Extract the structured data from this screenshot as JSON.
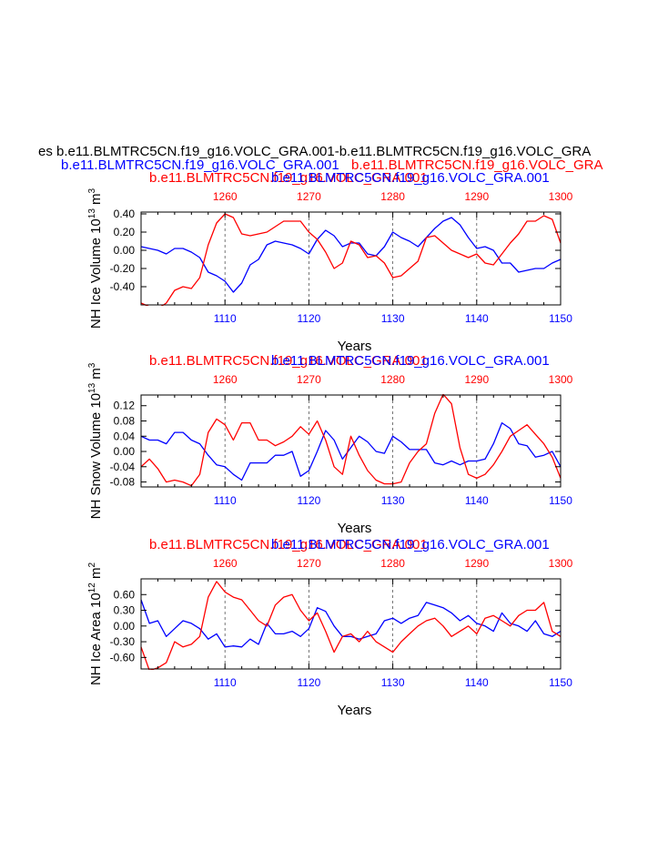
{
  "main_title": "es b.e11.BLMTRC5CN.f19_g16.VOLC_GRA.001-b.e11.BLMTRC5CN.f19_g16.VOLC_GRA",
  "subtitle_blue": "b.e11.BLMTRC5CN.f19_g16.VOLC_GRA.001",
  "subtitle_red": "b.e11.BLMTRC5CN.f19_g16.VOLC_GRA",
  "colors": {
    "blue": "#0000ff",
    "red": "#ff0000",
    "black": "#000000",
    "grid": "#555555"
  },
  "chart_data": [
    {
      "type": "line",
      "name": "ice-volume",
      "ylabel_main": "NH Ice Volume 10",
      "ylabel_exp": "13",
      "ylabel_unit": " m",
      "ylabel_unit_exp": "3",
      "xlabel": "Years",
      "title_red": "b.e11.BLMTRC5CN.f19_g16.VOLC_GRA.001",
      "title_blue": "b.e11.BLMTRC5CN.f19_g16.VOLC_GRA.001",
      "xlim_bottom": [
        1100,
        1150
      ],
      "xlim_top": [
        1250,
        1300
      ],
      "ylim": [
        -0.6,
        0.42
      ],
      "yticks": [
        -0.4,
        -0.2,
        0.0,
        0.2,
        0.4
      ],
      "ytick_labels": [
        "-0.40",
        "-0.20",
        "0.00",
        "0.20",
        "0.40"
      ],
      "xticks_bottom": [
        "1110",
        "1120",
        "1130",
        "1140",
        "1150"
      ],
      "xticks_top": [
        "1260",
        "1270",
        "1280",
        "1290",
        "1300"
      ],
      "series": [
        {
          "name": "blue",
          "color": "#0000ff",
          "values": [
            0.04,
            0.02,
            0.0,
            -0.04,
            0.02,
            0.02,
            -0.02,
            -0.08,
            -0.24,
            -0.28,
            -0.34,
            -0.46,
            -0.36,
            -0.16,
            -0.1,
            0.06,
            0.1,
            0.08,
            0.06,
            0.02,
            -0.04,
            0.12,
            0.22,
            0.16,
            0.04,
            0.08,
            0.08,
            -0.04,
            -0.06,
            0.04,
            0.2,
            0.14,
            0.1,
            0.04,
            0.14,
            0.24,
            0.32,
            0.36,
            0.28,
            0.14,
            0.02,
            0.04,
            0.0,
            -0.14,
            -0.14,
            -0.24,
            -0.22,
            -0.2,
            -0.2,
            -0.14,
            -0.1
          ]
        },
        {
          "name": "red",
          "color": "#ff0000",
          "values": [
            -0.58,
            -0.62,
            -0.64,
            -0.58,
            -0.44,
            -0.4,
            -0.42,
            -0.3,
            0.06,
            0.3,
            0.4,
            0.36,
            0.18,
            0.16,
            0.18,
            0.2,
            0.26,
            0.32,
            0.32,
            0.32,
            0.2,
            0.12,
            -0.02,
            -0.2,
            -0.14,
            0.1,
            0.06,
            -0.08,
            -0.06,
            -0.14,
            -0.3,
            -0.28,
            -0.2,
            -0.12,
            0.14,
            0.16,
            0.08,
            0.0,
            -0.04,
            -0.08,
            -0.04,
            -0.14,
            -0.16,
            -0.04,
            0.08,
            0.18,
            0.32,
            0.32,
            0.38,
            0.34,
            0.08
          ]
        }
      ]
    },
    {
      "type": "line",
      "name": "snow-volume",
      "ylabel_main": "NH Snow Volume 10",
      "ylabel_exp": "13",
      "ylabel_unit": " m",
      "ylabel_unit_exp": "3",
      "xlabel": "Years",
      "title_red": "b.e11.BLMTRC5CN.f19_g16.VOLC_GRA.001",
      "title_blue": "b.e11.BLMTRC5CN.f19_g16.VOLC_GRA.001",
      "xlim_bottom": [
        1100,
        1150
      ],
      "xlim_top": [
        1250,
        1300
      ],
      "ylim": [
        -0.093,
        0.148
      ],
      "yticks": [
        -0.08,
        -0.04,
        0.0,
        0.04,
        0.08,
        0.12
      ],
      "ytick_labels": [
        "-0.08",
        "-0.04",
        "0.00",
        "0.04",
        "0.08",
        "0.12"
      ],
      "xticks_bottom": [
        "1110",
        "1120",
        "1130",
        "1140",
        "1150"
      ],
      "xticks_top": [
        "1260",
        "1270",
        "1280",
        "1290",
        "1300"
      ],
      "series": [
        {
          "name": "blue",
          "color": "#0000ff",
          "values": [
            0.04,
            0.03,
            0.03,
            0.02,
            0.05,
            0.05,
            0.03,
            0.02,
            -0.01,
            -0.035,
            -0.04,
            -0.06,
            -0.075,
            -0.03,
            -0.03,
            -0.03,
            -0.01,
            -0.01,
            0.0,
            -0.065,
            -0.05,
            0.0,
            0.055,
            0.03,
            -0.02,
            0.01,
            0.04,
            0.025,
            0.0,
            -0.005,
            0.04,
            0.025,
            0.005,
            0.005,
            0.005,
            -0.03,
            -0.035,
            -0.025,
            -0.035,
            -0.025,
            -0.025,
            -0.02,
            0.02,
            0.075,
            0.06,
            0.02,
            0.015,
            -0.015,
            -0.01,
            0.0,
            -0.04
          ]
        },
        {
          "name": "red",
          "color": "#ff0000",
          "values": [
            -0.04,
            -0.02,
            -0.045,
            -0.08,
            -0.075,
            -0.08,
            -0.09,
            -0.06,
            0.05,
            0.085,
            0.07,
            0.03,
            0.075,
            0.075,
            0.03,
            0.03,
            0.015,
            0.025,
            0.04,
            0.065,
            0.045,
            0.08,
            0.03,
            -0.04,
            -0.06,
            0.04,
            -0.01,
            -0.05,
            -0.075,
            -0.085,
            -0.085,
            -0.08,
            -0.03,
            0.0,
            0.02,
            0.1,
            0.15,
            0.125,
            0.01,
            -0.06,
            -0.07,
            -0.06,
            -0.035,
            0.0,
            0.04,
            0.055,
            0.07,
            0.045,
            0.02,
            -0.015,
            -0.07
          ]
        }
      ]
    },
    {
      "type": "line",
      "name": "ice-area",
      "ylabel_main": "NH Ice Area 10",
      "ylabel_exp": "12",
      "ylabel_unit": " m",
      "ylabel_unit_exp": "2",
      "xlabel": "Years",
      "title_red": "b.e11.BLMTRC5CN.f19_g16.VOLC_GRA.001",
      "title_blue": "b.e11.BLMTRC5CN.f19_g16.VOLC_GRA.001",
      "xlim_bottom": [
        1100,
        1150
      ],
      "xlim_top": [
        1250,
        1300
      ],
      "ylim": [
        -0.82,
        0.9
      ],
      "yticks": [
        -0.6,
        -0.3,
        0.0,
        0.3,
        0.6
      ],
      "ytick_labels": [
        "-0.60",
        "-0.30",
        "0.00",
        "0.30",
        "0.60"
      ],
      "xticks_bottom": [
        "1110",
        "1120",
        "1130",
        "1140",
        "1150"
      ],
      "xticks_top": [
        "1260",
        "1270",
        "1280",
        "1290",
        "1300"
      ],
      "series": [
        {
          "name": "blue",
          "color": "#0000ff",
          "values": [
            0.5,
            0.05,
            0.1,
            -0.2,
            -0.05,
            0.1,
            0.05,
            -0.05,
            -0.25,
            -0.15,
            -0.4,
            -0.38,
            -0.4,
            -0.25,
            -0.35,
            0.05,
            -0.15,
            -0.15,
            -0.1,
            -0.2,
            -0.05,
            0.35,
            0.28,
            0.0,
            -0.2,
            -0.2,
            -0.25,
            -0.2,
            -0.15,
            0.1,
            0.15,
            0.05,
            0.15,
            0.2,
            0.45,
            0.4,
            0.35,
            0.25,
            0.1,
            0.2,
            0.05,
            0.0,
            -0.1,
            0.25,
            0.05,
            0.0,
            -0.1,
            0.1,
            -0.15,
            -0.2,
            -0.1
          ]
        },
        {
          "name": "red",
          "color": "#ff0000",
          "values": [
            -0.4,
            -0.85,
            -0.8,
            -0.7,
            -0.3,
            -0.4,
            -0.35,
            -0.2,
            0.55,
            0.85,
            0.65,
            0.55,
            0.5,
            0.3,
            0.1,
            0.0,
            0.4,
            0.55,
            0.6,
            0.3,
            0.1,
            0.25,
            -0.1,
            -0.5,
            -0.2,
            -0.15,
            -0.3,
            -0.1,
            -0.3,
            -0.4,
            -0.5,
            -0.3,
            -0.15,
            0.0,
            0.1,
            0.15,
            0.0,
            -0.2,
            -0.1,
            0.0,
            -0.15,
            0.15,
            0.2,
            0.1,
            0.0,
            0.2,
            0.3,
            0.3,
            0.45,
            -0.1,
            -0.2
          ]
        }
      ]
    }
  ]
}
